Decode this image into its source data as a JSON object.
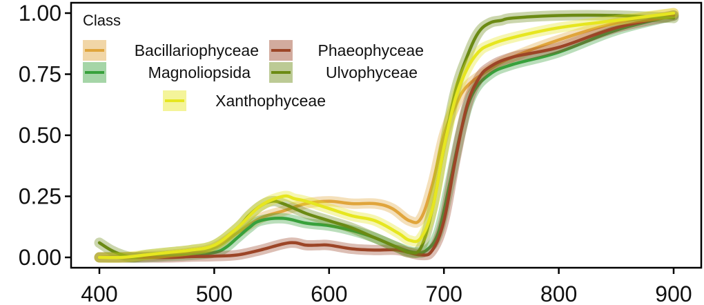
{
  "chart_data": {
    "type": "line",
    "title": "",
    "xlabel": "",
    "ylabel": "",
    "xlim": [
      400,
      900
    ],
    "ylim": [
      0,
      1
    ],
    "x_ticks": [
      400,
      500,
      600,
      700,
      800,
      900
    ],
    "y_ticks": [
      0,
      0.25,
      0.5,
      0.75,
      1
    ],
    "x_tick_labels": [
      "400",
      "500",
      "600",
      "700",
      "800",
      "900"
    ],
    "y_tick_labels": [
      "0.00",
      "0.25",
      "0.50",
      "0.75",
      "1.00"
    ],
    "grid": false,
    "legend": {
      "title": "Class",
      "placement": "top-left"
    },
    "series": [
      {
        "name": "Bacillariophyceae",
        "color": "#E0A53C",
        "x": [
          400,
          420,
          440,
          460,
          480,
          500,
          520,
          540,
          560,
          580,
          600,
          620,
          640,
          655,
          670,
          680,
          690,
          700,
          710,
          720,
          740,
          760,
          800,
          850,
          900
        ],
        "y": [
          0.0,
          0.0,
          0.005,
          0.01,
          0.02,
          0.04,
          0.1,
          0.16,
          0.19,
          0.22,
          0.23,
          0.22,
          0.22,
          0.2,
          0.15,
          0.16,
          0.3,
          0.5,
          0.62,
          0.7,
          0.77,
          0.82,
          0.89,
          0.96,
          1.0
        ]
      },
      {
        "name": "Magnoliopsida",
        "color": "#38A13C",
        "x": [
          400,
          420,
          440,
          460,
          480,
          500,
          510,
          520,
          530,
          540,
          560,
          580,
          600,
          620,
          640,
          660,
          675,
          685,
          695,
          705,
          715,
          725,
          740,
          760,
          800,
          850,
          900
        ],
        "y": [
          0.0,
          0.0,
          0.0,
          0.005,
          0.01,
          0.02,
          0.04,
          0.08,
          0.12,
          0.15,
          0.16,
          0.14,
          0.13,
          0.11,
          0.08,
          0.04,
          0.02,
          0.03,
          0.1,
          0.3,
          0.52,
          0.67,
          0.75,
          0.79,
          0.84,
          0.93,
          0.99
        ]
      },
      {
        "name": "Phaeophyceae",
        "color": "#9C4527",
        "x": [
          400,
          420,
          440,
          460,
          480,
          500,
          520,
          540,
          560,
          570,
          580,
          590,
          600,
          620,
          640,
          660,
          680,
          690,
          700,
          710,
          720,
          730,
          740,
          760,
          800,
          850,
          900
        ],
        "y": [
          0.0,
          0.0,
          0.0,
          0.0,
          0.003,
          0.005,
          0.01,
          0.03,
          0.055,
          0.06,
          0.05,
          0.05,
          0.05,
          0.035,
          0.03,
          0.03,
          0.01,
          0.03,
          0.15,
          0.4,
          0.62,
          0.73,
          0.78,
          0.82,
          0.86,
          0.94,
          0.99
        ]
      },
      {
        "name": "Ulvophyceae",
        "color": "#6B8A14",
        "x": [
          400,
          410,
          420,
          430,
          440,
          460,
          480,
          500,
          520,
          530,
          540,
          550,
          560,
          580,
          600,
          620,
          640,
          660,
          670,
          680,
          690,
          700,
          710,
          720,
          730,
          740,
          750,
          760,
          800,
          850,
          900
        ],
        "y": [
          0.06,
          0.03,
          0.01,
          0.0,
          0.01,
          0.02,
          0.03,
          0.05,
          0.12,
          0.17,
          0.21,
          0.23,
          0.22,
          0.18,
          0.15,
          0.12,
          0.08,
          0.04,
          0.02,
          0.04,
          0.2,
          0.45,
          0.68,
          0.82,
          0.92,
          0.96,
          0.97,
          0.98,
          0.99,
          0.99,
          0.98
        ]
      },
      {
        "name": "Xanthophyceae",
        "color": "#E6E620",
        "x": [
          400,
          420,
          440,
          460,
          480,
          500,
          520,
          540,
          560,
          570,
          580,
          600,
          620,
          640,
          660,
          670,
          680,
          690,
          700,
          710,
          720,
          730,
          740,
          760,
          800,
          850,
          900
        ],
        "y": [
          0.0,
          0.0,
          0.01,
          0.02,
          0.03,
          0.05,
          0.12,
          0.21,
          0.25,
          0.24,
          0.23,
          0.2,
          0.17,
          0.15,
          0.1,
          0.07,
          0.08,
          0.2,
          0.45,
          0.65,
          0.77,
          0.84,
          0.87,
          0.9,
          0.94,
          0.97,
          1.0
        ]
      }
    ]
  }
}
